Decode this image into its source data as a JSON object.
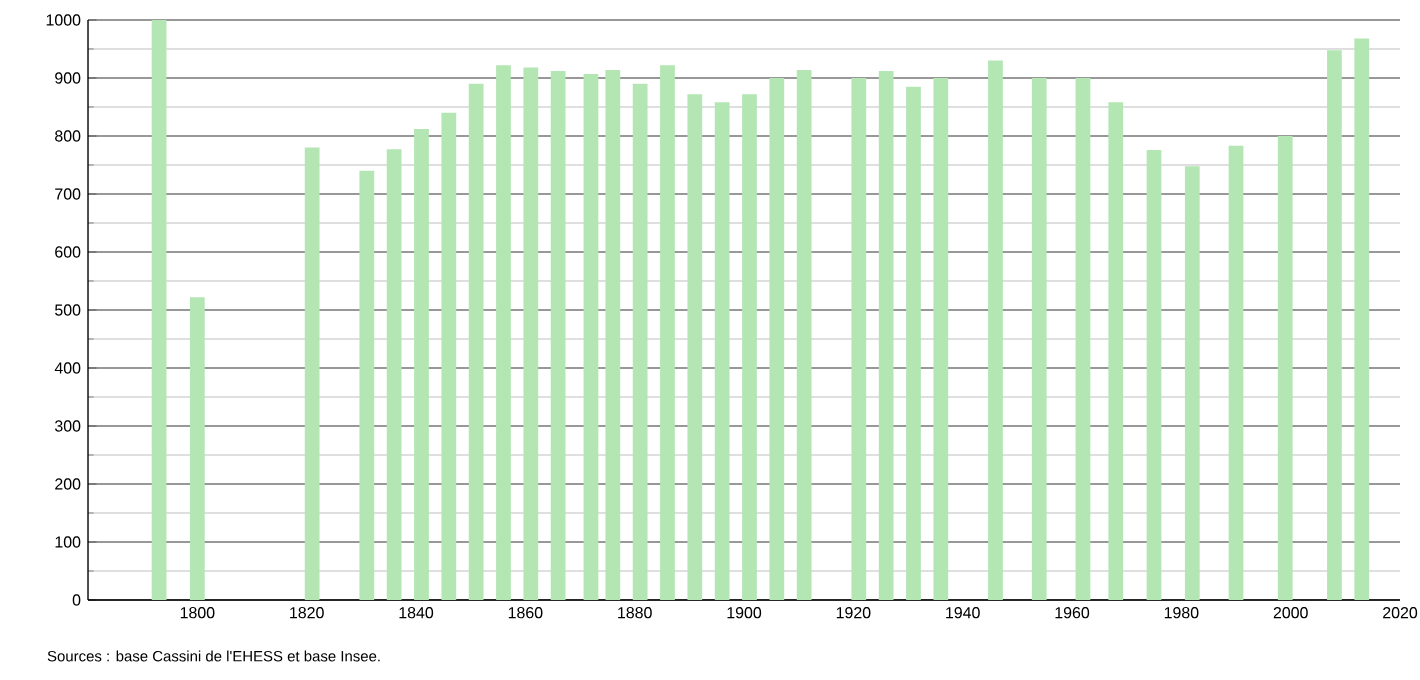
{
  "chart_data": {
    "type": "bar",
    "color": "#b3e6b3",
    "x": [
      1793,
      1800,
      1821,
      1831,
      1836,
      1841,
      1846,
      1851,
      1856,
      1861,
      1866,
      1872,
      1876,
      1881,
      1886,
      1891,
      1896,
      1901,
      1906,
      1911,
      1921,
      1926,
      1931,
      1936,
      1946,
      1954,
      1962,
      1968,
      1975,
      1982,
      1990,
      1999,
      2008,
      2013
    ],
    "values": [
      1000,
      522,
      780,
      740,
      777,
      812,
      840,
      890,
      922,
      918,
      912,
      907,
      914,
      890,
      922,
      872,
      858,
      872,
      900,
      914,
      900,
      912,
      885,
      900,
      930,
      900,
      900,
      858,
      776,
      748,
      783,
      800,
      948,
      968
    ],
    "xlim": [
      1780,
      2020
    ],
    "xticks": [
      1800,
      1820,
      1840,
      1860,
      1880,
      1900,
      1920,
      1940,
      1960,
      1980,
      2000,
      2020
    ],
    "ylim": [
      0,
      1000
    ],
    "yticks": [
      0,
      100,
      200,
      300,
      400,
      500,
      600,
      700,
      800,
      900,
      1000
    ],
    "grid": "y",
    "annotations": [
      "Sources : base Cassini de l'EHESS et base Insee."
    ]
  }
}
